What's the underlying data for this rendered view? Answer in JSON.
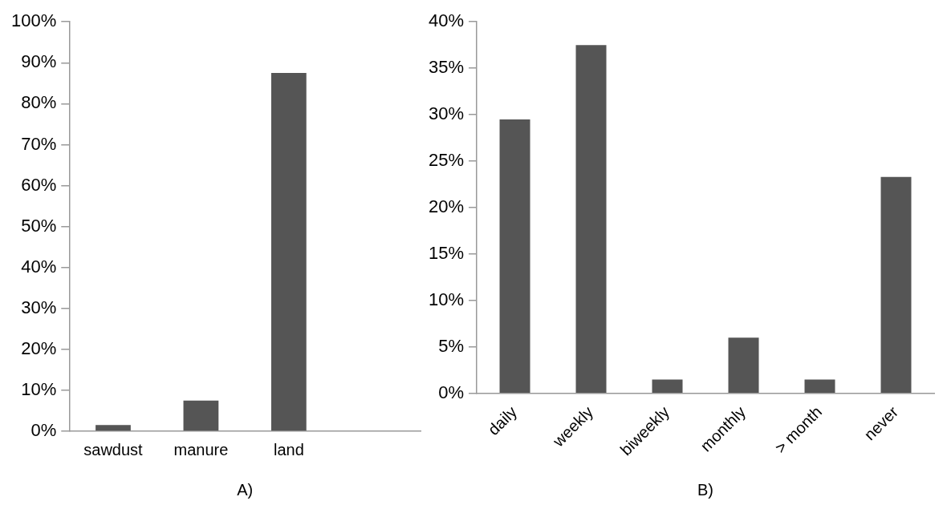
{
  "chart_data": [
    {
      "type": "bar",
      "xlabel": "A)",
      "categories": [
        "sawdust",
        "manure",
        "land",
        null
      ],
      "values": [
        1.5,
        7.5,
        87.5,
        null
      ],
      "color": "#555555",
      "ylim": [
        0,
        100
      ],
      "yticks": [
        {
          "value": 0,
          "label": "0%"
        },
        {
          "value": 10,
          "label": "10%"
        },
        {
          "value": 20,
          "label": "20%"
        },
        {
          "value": 30,
          "label": "30%"
        },
        {
          "value": 40,
          "label": "40%"
        },
        {
          "value": 50,
          "label": "50%"
        },
        {
          "value": 60,
          "label": "60%"
        },
        {
          "value": 70,
          "label": "70%"
        },
        {
          "value": 80,
          "label": "80%"
        },
        {
          "value": 90,
          "label": "90%"
        },
        {
          "value": 100,
          "label": "100%"
        }
      ],
      "grid": false,
      "legend": false
    },
    {
      "type": "bar",
      "xlabel": "B)",
      "categories": [
        "daily",
        "weekly",
        "biweekly",
        "monthly",
        "> month",
        "never"
      ],
      "values": [
        29.5,
        37.5,
        1.5,
        6,
        1.5,
        23.3
      ],
      "color": "#555555",
      "ylim": [
        0,
        40
      ],
      "yticks": [
        {
          "value": 0,
          "label": "0%"
        },
        {
          "value": 5,
          "label": "5%"
        },
        {
          "value": 10,
          "label": "10%"
        },
        {
          "value": 15,
          "label": "15%"
        },
        {
          "value": 20,
          "label": "20%"
        },
        {
          "value": 25,
          "label": "25%"
        },
        {
          "value": 30,
          "label": "30%"
        },
        {
          "value": 35,
          "label": "35%"
        },
        {
          "value": 40,
          "label": "40%"
        }
      ],
      "grid": false,
      "legend": false
    }
  ]
}
